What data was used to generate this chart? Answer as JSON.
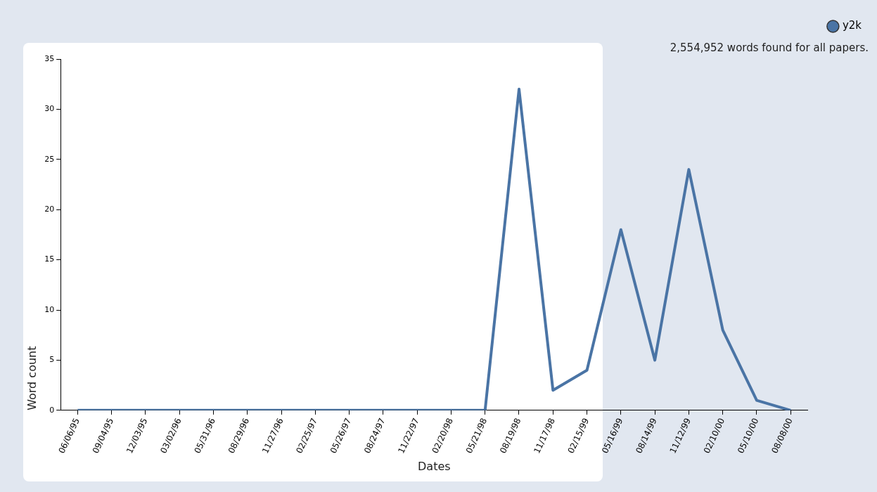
{
  "chart_data": {
    "type": "line",
    "xlabel": "Dates",
    "ylabel": "Word count",
    "annotations": [
      "2,554,952 words found for all papers."
    ],
    "categories": [
      "06/06/95",
      "09/04/95",
      "12/03/95",
      "03/02/96",
      "05/31/96",
      "08/29/96",
      "11/27/96",
      "02/25/97",
      "05/26/97",
      "08/24/97",
      "11/22/97",
      "02/20/98",
      "05/21/98",
      "08/19/98",
      "11/17/98",
      "02/15/99",
      "05/16/99",
      "08/14/99",
      "11/12/99",
      "02/10/00",
      "05/10/00",
      "08/08/00"
    ],
    "series": [
      {
        "name": "y2k",
        "color": "#4a74a5",
        "values": [
          0,
          0,
          0,
          0,
          0,
          0,
          0,
          0,
          0,
          0,
          0,
          0,
          0,
          32,
          2,
          4,
          18,
          5,
          24,
          8,
          1,
          0
        ]
      }
    ],
    "ylim": [
      0,
      35
    ],
    "yticks": [
      0,
      5,
      10,
      15,
      20,
      25,
      30,
      35
    ],
    "grid": false,
    "legend": "top right",
    "marker": "none",
    "line_style": "solid"
  }
}
